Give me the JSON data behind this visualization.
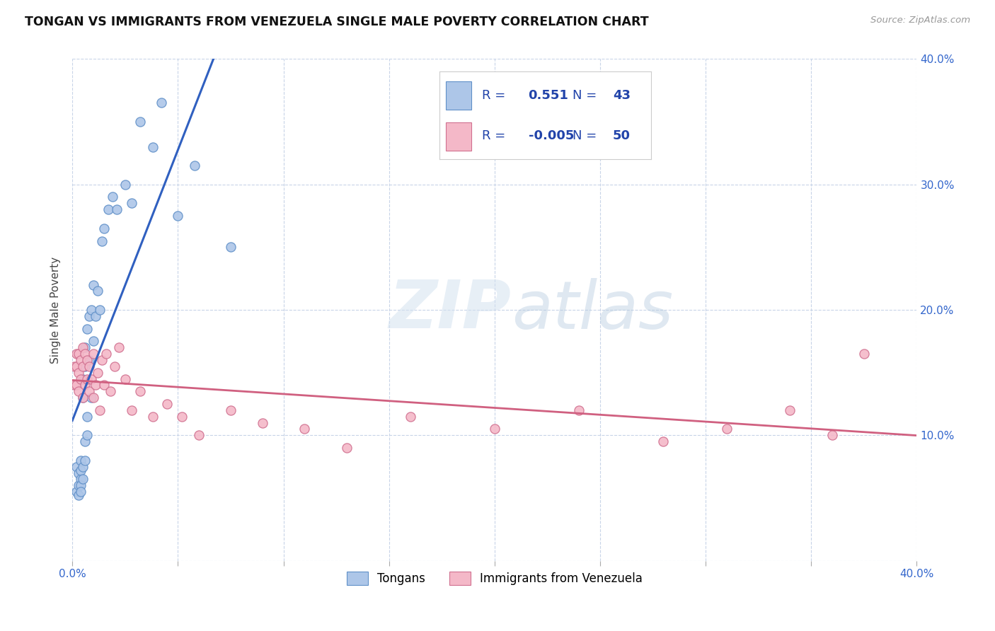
{
  "title": "TONGAN VS IMMIGRANTS FROM VENEZUELA SINGLE MALE POVERTY CORRELATION CHART",
  "source": "Source: ZipAtlas.com",
  "ylabel": "Single Male Poverty",
  "legend_labels": [
    "Tongans",
    "Immigrants from Venezuela"
  ],
  "tongan_R": "0.551",
  "tongan_N": "43",
  "venezuela_R": "-0.005",
  "venezuela_N": "50",
  "xlim": [
    0.0,
    0.4
  ],
  "ylim": [
    0.0,
    0.4
  ],
  "color_tongan_fill": "#adc6e8",
  "color_tongan_edge": "#6090c8",
  "color_venezuela_fill": "#f4b8c8",
  "color_venezuela_edge": "#d07090",
  "color_tongan_line": "#3060c0",
  "color_venezuela_line": "#d06080",
  "color_trendline_ext": "#a8b8d0",
  "color_legend_text": "#2244aa",
  "color_legend_neg": "#cc3355",
  "background_color": "#ffffff",
  "watermark_zip": "ZIP",
  "watermark_atlas": "atlas",
  "tongan_x": [
    0.002,
    0.002,
    0.003,
    0.003,
    0.003,
    0.004,
    0.004,
    0.004,
    0.004,
    0.004,
    0.005,
    0.005,
    0.005,
    0.005,
    0.006,
    0.006,
    0.006,
    0.006,
    0.007,
    0.007,
    0.007,
    0.008,
    0.008,
    0.009,
    0.009,
    0.01,
    0.01,
    0.011,
    0.012,
    0.013,
    0.014,
    0.015,
    0.017,
    0.019,
    0.021,
    0.025,
    0.028,
    0.032,
    0.038,
    0.042,
    0.05,
    0.058,
    0.075
  ],
  "tongan_y": [
    0.075,
    0.055,
    0.07,
    0.06,
    0.052,
    0.065,
    0.06,
    0.072,
    0.08,
    0.055,
    0.065,
    0.075,
    0.13,
    0.145,
    0.08,
    0.095,
    0.155,
    0.17,
    0.1,
    0.115,
    0.185,
    0.16,
    0.195,
    0.13,
    0.2,
    0.175,
    0.22,
    0.195,
    0.215,
    0.2,
    0.255,
    0.265,
    0.28,
    0.29,
    0.28,
    0.3,
    0.285,
    0.35,
    0.33,
    0.365,
    0.275,
    0.315,
    0.25
  ],
  "venezuela_x": [
    0.001,
    0.001,
    0.002,
    0.002,
    0.002,
    0.003,
    0.003,
    0.003,
    0.004,
    0.004,
    0.005,
    0.005,
    0.005,
    0.006,
    0.006,
    0.007,
    0.007,
    0.008,
    0.008,
    0.009,
    0.01,
    0.01,
    0.011,
    0.012,
    0.013,
    0.014,
    0.015,
    0.016,
    0.018,
    0.02,
    0.022,
    0.025,
    0.028,
    0.032,
    0.038,
    0.045,
    0.052,
    0.06,
    0.075,
    0.09,
    0.11,
    0.13,
    0.16,
    0.2,
    0.24,
    0.28,
    0.31,
    0.34,
    0.36,
    0.375
  ],
  "venezuela_y": [
    0.14,
    0.155,
    0.14,
    0.155,
    0.165,
    0.135,
    0.15,
    0.165,
    0.145,
    0.16,
    0.13,
    0.155,
    0.17,
    0.14,
    0.165,
    0.145,
    0.16,
    0.135,
    0.155,
    0.145,
    0.13,
    0.165,
    0.14,
    0.15,
    0.12,
    0.16,
    0.14,
    0.165,
    0.135,
    0.155,
    0.17,
    0.145,
    0.12,
    0.135,
    0.115,
    0.125,
    0.115,
    0.1,
    0.12,
    0.11,
    0.105,
    0.09,
    0.115,
    0.105,
    0.12,
    0.095,
    0.105,
    0.12,
    0.1,
    0.165
  ]
}
